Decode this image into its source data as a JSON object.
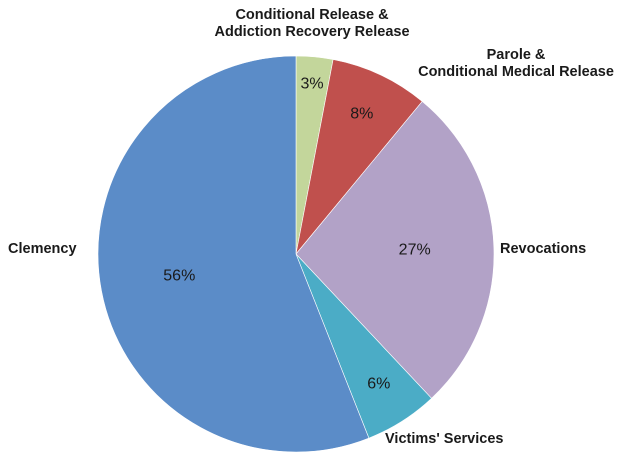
{
  "chart_data": {
    "type": "pie",
    "title": "",
    "slices": [
      {
        "category": "Conditional Release & Addiction Recovery Release",
        "category_lines": [
          "Conditional Release &",
          "Addiction Recovery Release"
        ],
        "value": 3,
        "label": "3%",
        "color": "#c3d69b"
      },
      {
        "category": "Parole & Conditional Medical Release",
        "category_lines": [
          "Parole &",
          "Conditional Medical Release"
        ],
        "value": 8,
        "label": "8%",
        "color": "#c0504d"
      },
      {
        "category": "Revocations",
        "category_lines": [
          "Revocations"
        ],
        "value": 27,
        "label": "27%",
        "color": "#b2a2c7"
      },
      {
        "category": "Victims' Services",
        "category_lines": [
          "Victims' Services"
        ],
        "value": 6,
        "label": "6%",
        "color": "#4bacc6"
      },
      {
        "category": "Clemency",
        "category_lines": [
          "Clemency"
        ],
        "value": 56,
        "label": "56%",
        "color": "#5b8cc8"
      }
    ],
    "start_angle_deg": 0,
    "direction": "clockwise",
    "legend": "none"
  }
}
